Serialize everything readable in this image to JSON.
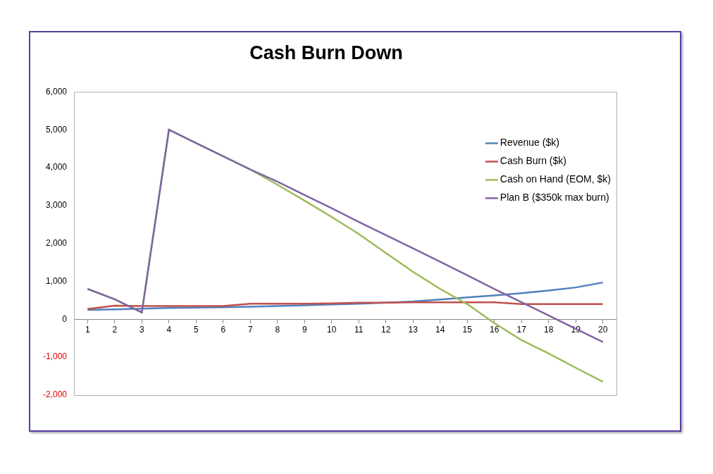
{
  "chart_data": {
    "type": "line",
    "title": "Cash Burn Down",
    "categories": [
      "1",
      "2",
      "3",
      "4",
      "5",
      "6",
      "7",
      "8",
      "9",
      "10",
      "11",
      "12",
      "13",
      "14",
      "15",
      "16",
      "17",
      "18",
      "19",
      "20"
    ],
    "series": [
      {
        "name": "Revenue ($k)",
        "color": "#4f81bd",
        "values": [
          250,
          260,
          280,
          300,
          310,
          320,
          330,
          350,
          370,
          390,
          410,
          440,
          470,
          520,
          580,
          630,
          690,
          760,
          840,
          970
        ]
      },
      {
        "name": "Cash Burn ($k)",
        "color": "#c0504d",
        "values": [
          270,
          360,
          350,
          350,
          350,
          350,
          410,
          410,
          410,
          420,
          440,
          440,
          450,
          450,
          450,
          450,
          400,
          400,
          400,
          400
        ]
      },
      {
        "name": "Cash on Hand (EOM, $k)",
        "color": "#9bbb59",
        "values": [
          800,
          530,
          180,
          5000,
          4650,
          4300,
          3950,
          3550,
          3130,
          2700,
          2250,
          1750,
          1250,
          800,
          400,
          -100,
          -550,
          -900,
          -1280,
          -1650
        ]
      },
      {
        "name": "Plan B ($350k max burn)",
        "color": "#8064a2",
        "values": [
          800,
          530,
          180,
          5000,
          4650,
          4300,
          3950,
          3630,
          3280,
          2930,
          2570,
          2220,
          1870,
          1520,
          1160,
          800,
          450,
          100,
          -250,
          -600
        ]
      }
    ],
    "ylim": [
      -2000,
      6000
    ],
    "yticks": [
      {
        "value": -2000,
        "label": "-2,000"
      },
      {
        "value": -1000,
        "label": "-1,000"
      },
      0,
      {
        "value": 1000,
        "label": "1,000"
      },
      {
        "value": 2000,
        "label": "2,000"
      },
      {
        "value": 3000,
        "label": "3,000"
      },
      {
        "value": 4000,
        "label": "4,000"
      },
      {
        "value": 5000,
        "label": "5,000"
      },
      {
        "value": 6000,
        "label": "6,000"
      }
    ],
    "grid": false,
    "legend": "upper right"
  }
}
